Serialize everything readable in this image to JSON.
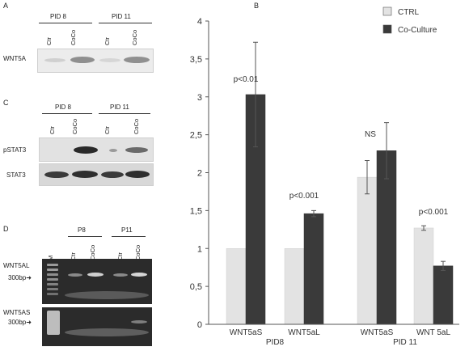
{
  "panels": {
    "a": {
      "letter": "A",
      "groups": [
        "PID 8",
        "PID 11"
      ],
      "lanes": [
        "Ctr",
        "CoCo",
        "Ctr",
        "CoCo"
      ],
      "row_label": "WNT5A"
    },
    "c": {
      "letter": "C",
      "groups": [
        "PID 8",
        "PID 11"
      ],
      "lanes": [
        "Ctr",
        "CoCo",
        "Ctr",
        "CoCo"
      ],
      "row_labels": [
        "pSTAT3",
        "STAT3"
      ]
    },
    "d": {
      "letter": "D",
      "marker": "M",
      "groups": [
        "P8",
        "P11"
      ],
      "lanes": [
        "Ctr",
        "CoCo",
        "Ctr",
        "CoCo"
      ],
      "row_labels": [
        "WNT5AL",
        "WNT5AS"
      ],
      "size_labels": [
        "300bp",
        "300bp"
      ]
    },
    "b": {
      "letter": "B"
    }
  },
  "chart_data": {
    "type": "bar",
    "title": "",
    "xlabel": "",
    "ylabel": "",
    "ylim": [
      0,
      4
    ],
    "yticks": [
      "0",
      "0,5",
      "1",
      "1,5",
      "2",
      "2,5",
      "3",
      "3,5",
      "4"
    ],
    "categories": [
      "WNT5aS",
      "WNT5aL",
      "WNT5aS",
      "WNT 5aL"
    ],
    "group_labels": [
      "PID8",
      "PID 11"
    ],
    "legend": {
      "position": "top-right",
      "entries": [
        "CTRL",
        "Co-Culture"
      ]
    },
    "colors": [
      "#e3e3e3",
      "#3a3a3a"
    ],
    "series": [
      {
        "name": "CTRL",
        "values": [
          1.0,
          1.0,
          1.94,
          1.27
        ],
        "errors": [
          0,
          0,
          0.22,
          0.03
        ]
      },
      {
        "name": "Co-Culture",
        "values": [
          3.03,
          1.46,
          2.29,
          0.77
        ],
        "errors": [
          0.69,
          0.04,
          0.37,
          0.06
        ]
      }
    ],
    "annotations": [
      "p<0.01",
      "p<0.001",
      "NS",
      "p<0.001"
    ]
  }
}
